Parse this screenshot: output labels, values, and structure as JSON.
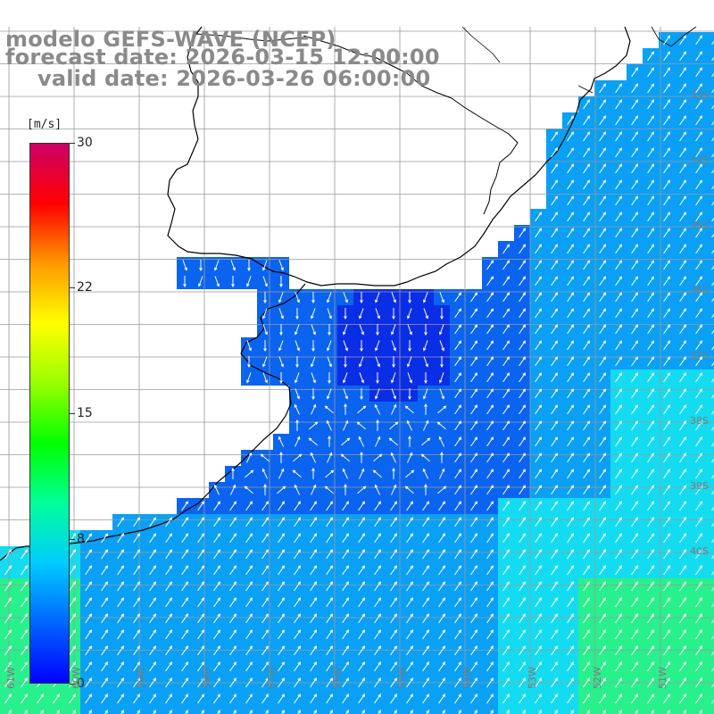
{
  "header": {
    "line1": "modelo GEFS-WAVE (NCEP)",
    "line2": "forecast date: 2026-03-15 12:00:00",
    "line3": "valid date: 2026-03-26 06:00:00"
  },
  "colorbar": {
    "unit": "[m/s]",
    "ticks": [
      "30",
      "22",
      "15",
      "8",
      "0"
    ],
    "tick_values": [
      30,
      22,
      15,
      8,
      0
    ],
    "min": 0,
    "max": 30,
    "colors": [
      "#0000ff",
      "#0066ff",
      "#00ccff",
      "#00ff99",
      "#00ff00",
      "#99ff00",
      "#ffff00",
      "#ff9900",
      "#ff0000",
      "#cc0066"
    ]
  },
  "map": {
    "lon_labels": [
      "61W",
      "60W",
      "59W",
      "58W",
      "57W",
      "56W",
      "55W",
      "54W",
      "53W",
      "52W",
      "51W"
    ],
    "lat_labels": [
      "33S",
      "34S",
      "35S",
      "36S",
      "37S",
      "38S",
      "39S",
      "40S"
    ],
    "ocean_colors": {
      "deep_blue": "#0a2ee6",
      "blue": "#0a64f0",
      "light_blue": "#0aa0f5",
      "cyan": "#14dcf0",
      "green": "#28f08c"
    },
    "land_color": "#ffffff",
    "grid_color": "#9a9a9a",
    "coast_color": "#000000",
    "arrow_color": "#ffffff"
  }
}
